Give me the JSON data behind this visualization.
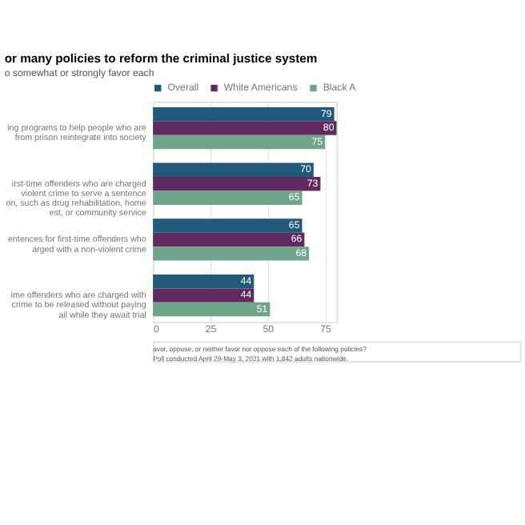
{
  "chart_data": {
    "type": "bar",
    "orientation": "horizontal",
    "title": "or many policies to reform the criminal justice system",
    "subtitle": "o somewhat or strongly favor each",
    "categories": [
      "ing programs to help people who are\n from prison reintegrate into society",
      "irst-time offenders who are charged\nviolent crime to serve a sentence\non, such as drug rehabilitation, home\nest, or community service",
      "entences for first-time offenders who\narged with a non-violent crime",
      "ime offenders who are charged with\ncrime to be released without paying\nail while they await trial"
    ],
    "series": [
      {
        "name": "Overall",
        "color": "#1f5a7a",
        "values": [
          79,
          70,
          65,
          44
        ]
      },
      {
        "name": "White Americans",
        "color": "#5e2a5f",
        "values": [
          80,
          73,
          66,
          44
        ]
      },
      {
        "name": "Black A",
        "color": "#6fa58a",
        "values": [
          75,
          65,
          68,
          51
        ]
      }
    ],
    "xlim": [
      0,
      80
    ],
    "xticks": [
      0,
      25,
      50,
      75
    ],
    "grid": "x",
    "legend": "top",
    "data_labels": true,
    "annotations": [
      "avor, oppose, or neither favor nor oppose each of the following policies?",
      "Poll conducted April 29-May 3, 2021 with 1,842 adults nationwide."
    ]
  }
}
